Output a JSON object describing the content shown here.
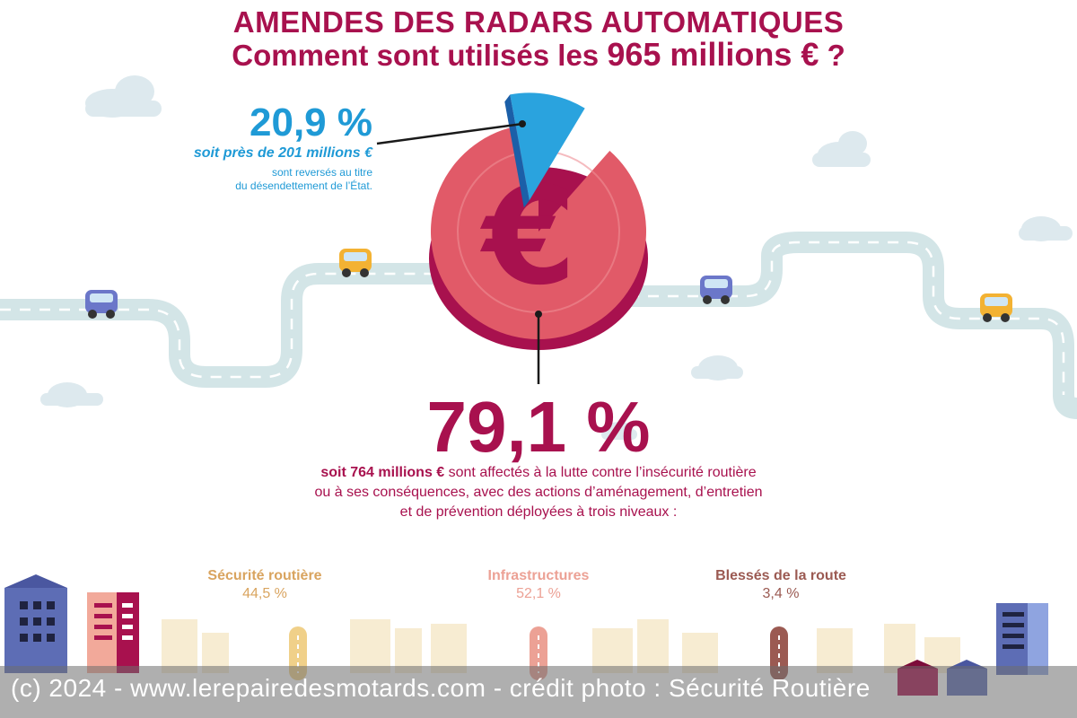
{
  "header": {
    "title_line1": "AMENDES DES RADARS AUTOMATIQUES",
    "title_line2_start": "Comment sont utilisés les ",
    "title_line2_amount": "965 millions €",
    "title_line2_end": " ?"
  },
  "callout_small": {
    "percent": "20,9 %",
    "line1": "soit près de 201 millions €",
    "line2": "sont reversés au titre",
    "line3": "du désendettement de l’État."
  },
  "callout_large": {
    "percent": "79,1 %",
    "desc_bold": "soit 764 millions €",
    "desc_rest": " sont affectés à la lutte contre l’insécurité routière",
    "desc_line2": "ou à ses conséquences, avec des actions d’aménagement, d’entretien",
    "desc_line3": "et de prévention déployées à trois niveaux :"
  },
  "categories": [
    {
      "label": "Sécurité routière",
      "value": "44,5 %",
      "color": "#d9a45f"
    },
    {
      "label": "Infrastructures",
      "value": "52,1 %",
      "color": "#eca195"
    },
    {
      "label": "Blessés de la route",
      "value": "3,4 %",
      "color": "#9b5a52"
    }
  ],
  "colors": {
    "accent": "#a8114e",
    "blue": "#1f9ad6",
    "pie_main": "#e15a68",
    "pie_dark": "#a8114e",
    "road": "#d3e5e7"
  },
  "icons": [
    "euro-icon",
    "car-icon",
    "cloud-icon",
    "building-icon"
  ],
  "chart_data": {
    "type": "pie",
    "title": "Comment sont utilisés les 965 millions € ?",
    "categories": [
      "Désendettement de l’État",
      "Lutte contre l’insécurité routière"
    ],
    "values": [
      20.9,
      79.1
    ],
    "amounts_millions_eur": [
      201,
      764
    ],
    "sub_breakdown": {
      "categories": [
        "Sécurité routière",
        "Infrastructures",
        "Blessés de la route"
      ],
      "values": [
        44.5,
        52.1,
        3.4
      ]
    }
  },
  "credit": "(c) 2024 - www.lerepairedesmotards.com - crédit photo : Sécurité Routière"
}
